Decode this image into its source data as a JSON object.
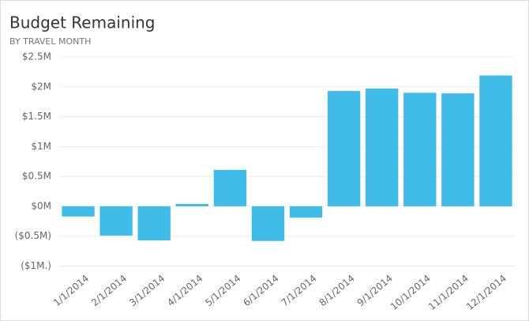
{
  "chart_data": {
    "type": "bar",
    "title": "Budget Remaining",
    "subtitle": "BY TRAVEL MONTH",
    "categories": [
      "1/1/2014",
      "2/1/2014",
      "3/1/2014",
      "4/1/2014",
      "5/1/2014",
      "6/1/2014",
      "7/1/2014",
      "8/1/2014",
      "9/1/2014",
      "10/1/2014",
      "11/1/2014",
      "12/1/2014"
    ],
    "values": [
      -0.17,
      -0.49,
      -0.57,
      0.04,
      0.61,
      -0.58,
      -0.19,
      1.93,
      1.97,
      1.9,
      1.89,
      2.19
    ],
    "color": "#3fbde8",
    "ylim": [
      -1,
      2.5
    ],
    "yticks": [
      {
        "value": -1,
        "label": "($1M.)"
      },
      {
        "value": -0.5,
        "label": "($0.5M)"
      },
      {
        "value": 0,
        "label": "$0M"
      },
      {
        "value": 0.5,
        "label": "$0.5M"
      },
      {
        "value": 1,
        "label": "$1M"
      },
      {
        "value": 1.5,
        "label": "$1.5M"
      },
      {
        "value": 2,
        "label": "$2M"
      },
      {
        "value": 2.5,
        "label": "$2.5M"
      }
    ],
    "grid": true
  }
}
